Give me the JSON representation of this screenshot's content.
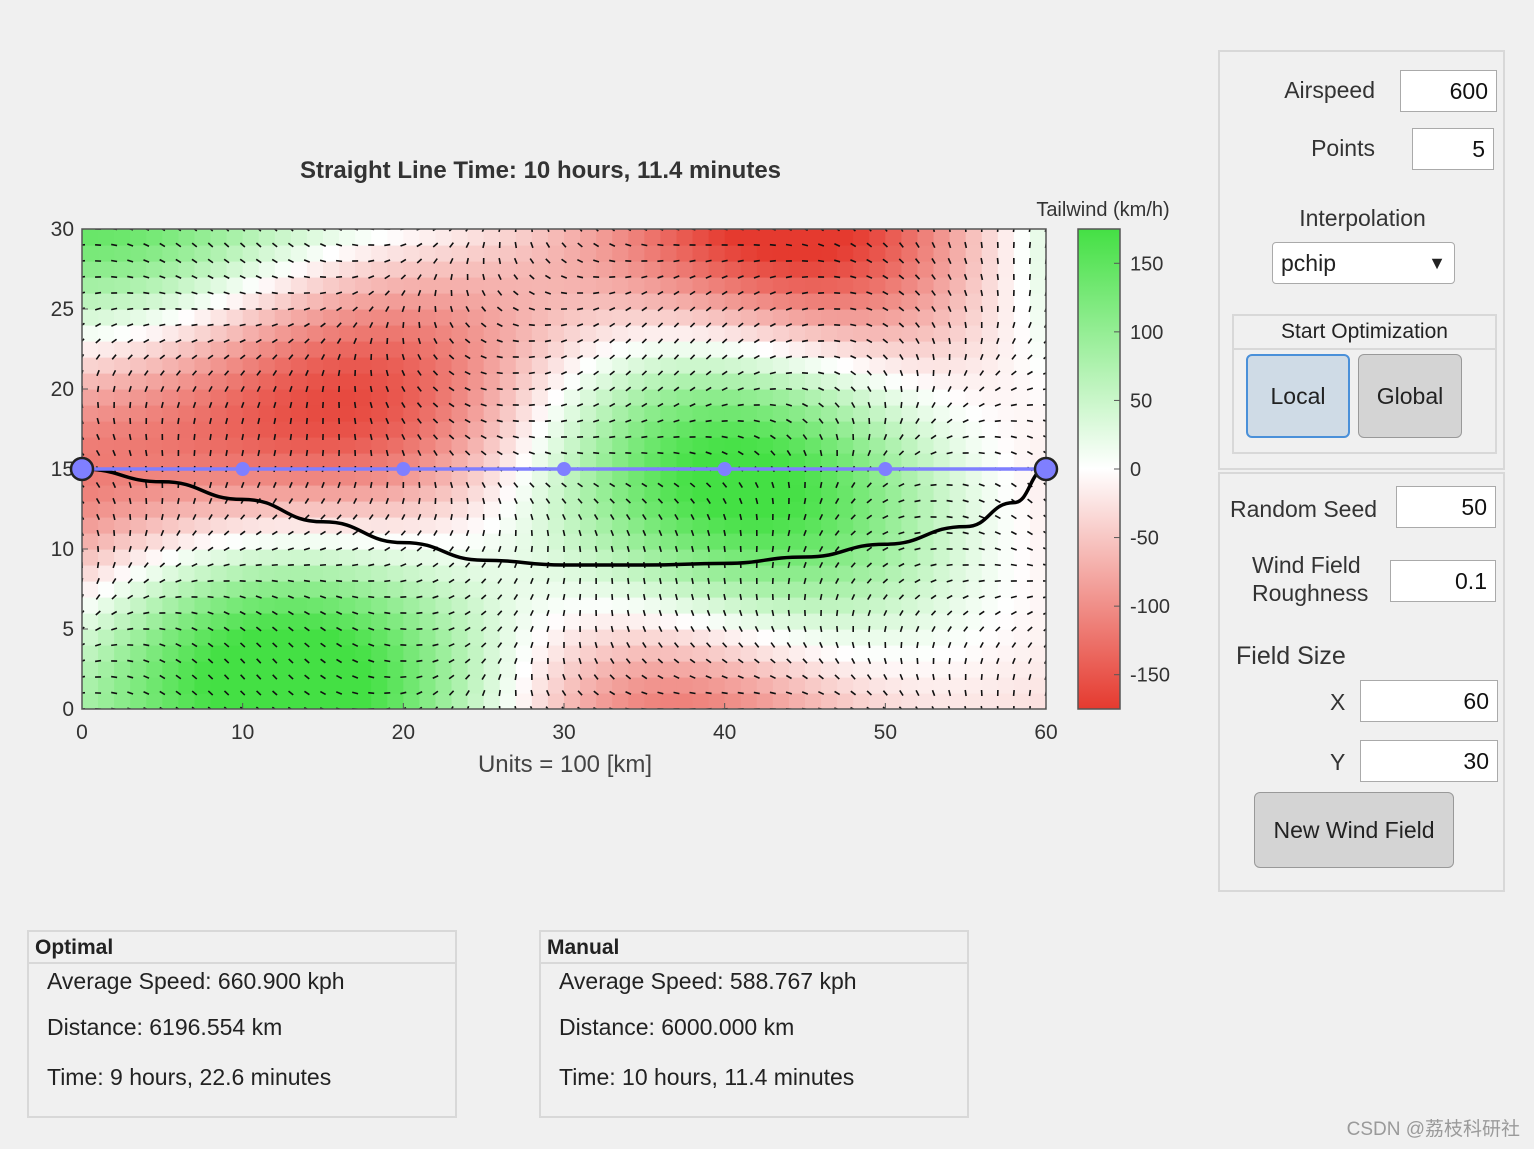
{
  "plot": {
    "title": "Straight Line Time: 10 hours, 11.4 minutes",
    "xlabel": "Units = 100 [km]",
    "colorbar_label": "Tailwind (km/h)"
  },
  "chart_data": {
    "type": "heatmap",
    "title": "Straight Line Time: 10 hours, 11.4 minutes",
    "xlabel": "Units = 100 [km]",
    "ylabel": "",
    "xlim": [
      0,
      60
    ],
    "ylim": [
      0,
      30
    ],
    "x_ticks": [
      0,
      10,
      20,
      30,
      40,
      50,
      60
    ],
    "y_ticks": [
      0,
      5,
      10,
      15,
      20,
      25,
      30
    ],
    "colorbar": {
      "label": "Tailwind (km/h)",
      "ticks": [
        150,
        100,
        50,
        0,
        -50,
        -100,
        -150
      ],
      "range": [
        -175,
        175
      ],
      "colors": {
        "high": "#44e044",
        "mid": "#ffffff",
        "low": "#e53a2f"
      }
    },
    "grid": false,
    "series": [
      {
        "name": "Manual",
        "color": "#7f7fff",
        "x": [
          0,
          10,
          20,
          30,
          40,
          50,
          60
        ],
        "y": [
          15,
          15,
          15,
          15,
          15,
          15,
          15
        ]
      },
      {
        "name": "Optimal",
        "color": "#000000",
        "x": [
          0,
          5,
          10,
          15,
          20,
          25,
          30,
          35,
          40,
          45,
          50,
          55,
          58,
          60
        ],
        "y": [
          15,
          14.2,
          13.1,
          11.7,
          10.4,
          9.3,
          9.0,
          9.0,
          9.1,
          9.5,
          10.3,
          11.4,
          12.9,
          15
        ]
      }
    ]
  },
  "controls": {
    "airspeed_label": "Airspeed",
    "airspeed_value": "600",
    "points_label": "Points",
    "points_value": "5",
    "interpolation_label": "Interpolation",
    "interpolation_value": "pchip",
    "start_optimization_label": "Start Optimization",
    "local_label": "Local",
    "global_label": "Global",
    "random_seed_label": "Random Seed",
    "random_seed_value": "50",
    "roughness_label_1": "Wind Field",
    "roughness_label_2": "Roughness",
    "roughness_value": "0.1",
    "field_size_label": "Field Size",
    "x_label": "X",
    "x_value": "60",
    "y_label": "Y",
    "y_value": "30",
    "new_wind_field_label": "New Wind Field"
  },
  "optimal": {
    "title": "Optimal",
    "avg_speed": "Average Speed: 660.900 kph",
    "distance": "Distance: 6196.554 km",
    "time": "Time: 9 hours, 22.6 minutes"
  },
  "manual": {
    "title": "Manual",
    "avg_speed": "Average Speed: 588.767 kph",
    "distance": "Distance: 6000.000 km",
    "time": "Time: 10 hours, 11.4 minutes"
  },
  "watermark": "CSDN @荔枝科研社"
}
